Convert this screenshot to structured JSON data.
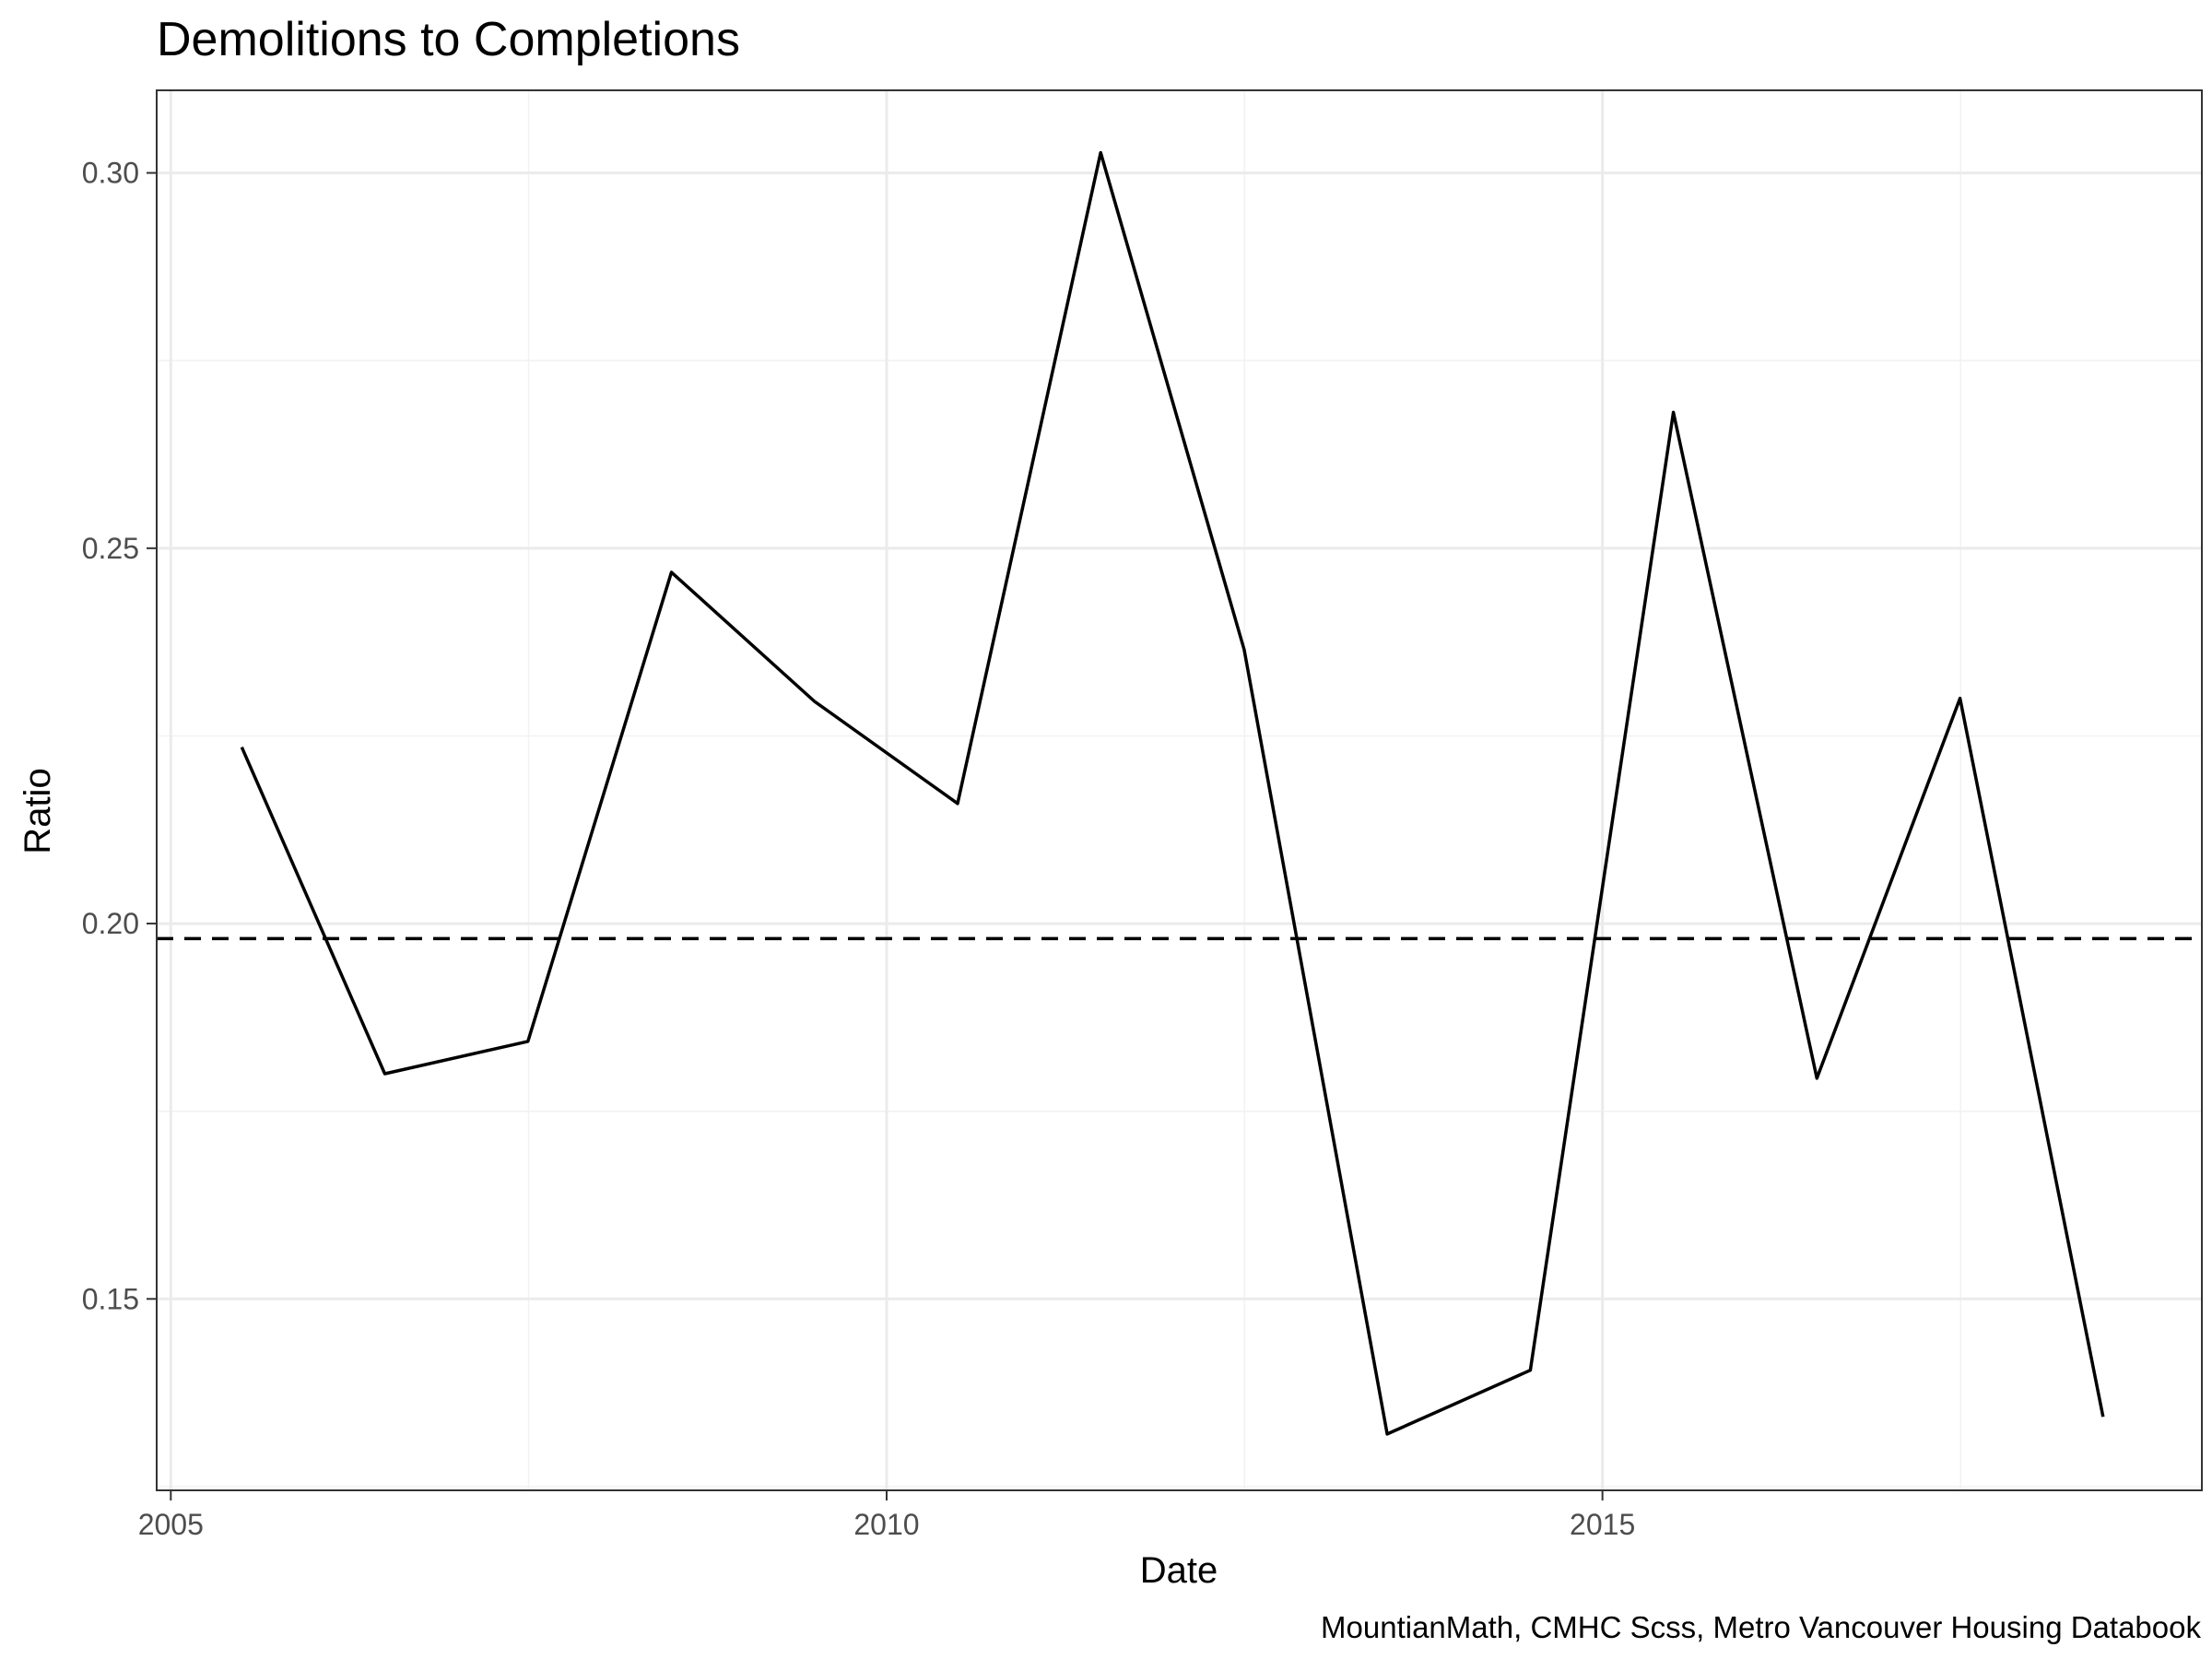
{
  "chart_data": {
    "type": "line",
    "title": "Demolitions to Completions",
    "xlabel": "Date",
    "ylabel": "Ratio",
    "caption": "MountianMath, CMHC Scss, Metro Vancouver Housing Databook",
    "x_ticks": [
      "2005",
      "2010",
      "2015"
    ],
    "y_ticks": [
      "0.15",
      "0.20",
      "0.25",
      "0.30"
    ],
    "xlim": [
      "2004-11-26",
      "2019-03-10"
    ],
    "ylim": [
      0.1245,
      0.311
    ],
    "grid": true,
    "series": [
      {
        "x": [
          "2005-07-01",
          "2006-07-01",
          "2007-07-01",
          "2008-07-01",
          "2009-07-01",
          "2010-07-01",
          "2011-07-01",
          "2012-07-01",
          "2013-07-01",
          "2014-07-01",
          "2015-07-01",
          "2016-07-01",
          "2017-07-01",
          "2018-07-01"
        ],
        "values": [
          0.2235,
          0.18,
          0.1843,
          0.2468,
          0.2296,
          0.216,
          0.3027,
          0.2365,
          0.132,
          0.1405,
          0.2681,
          0.1794,
          0.23,
          0.1343
        ]
      }
    ],
    "reference_lines": [
      {
        "axis": "y",
        "value": 0.198,
        "style": "dashed"
      }
    ]
  }
}
